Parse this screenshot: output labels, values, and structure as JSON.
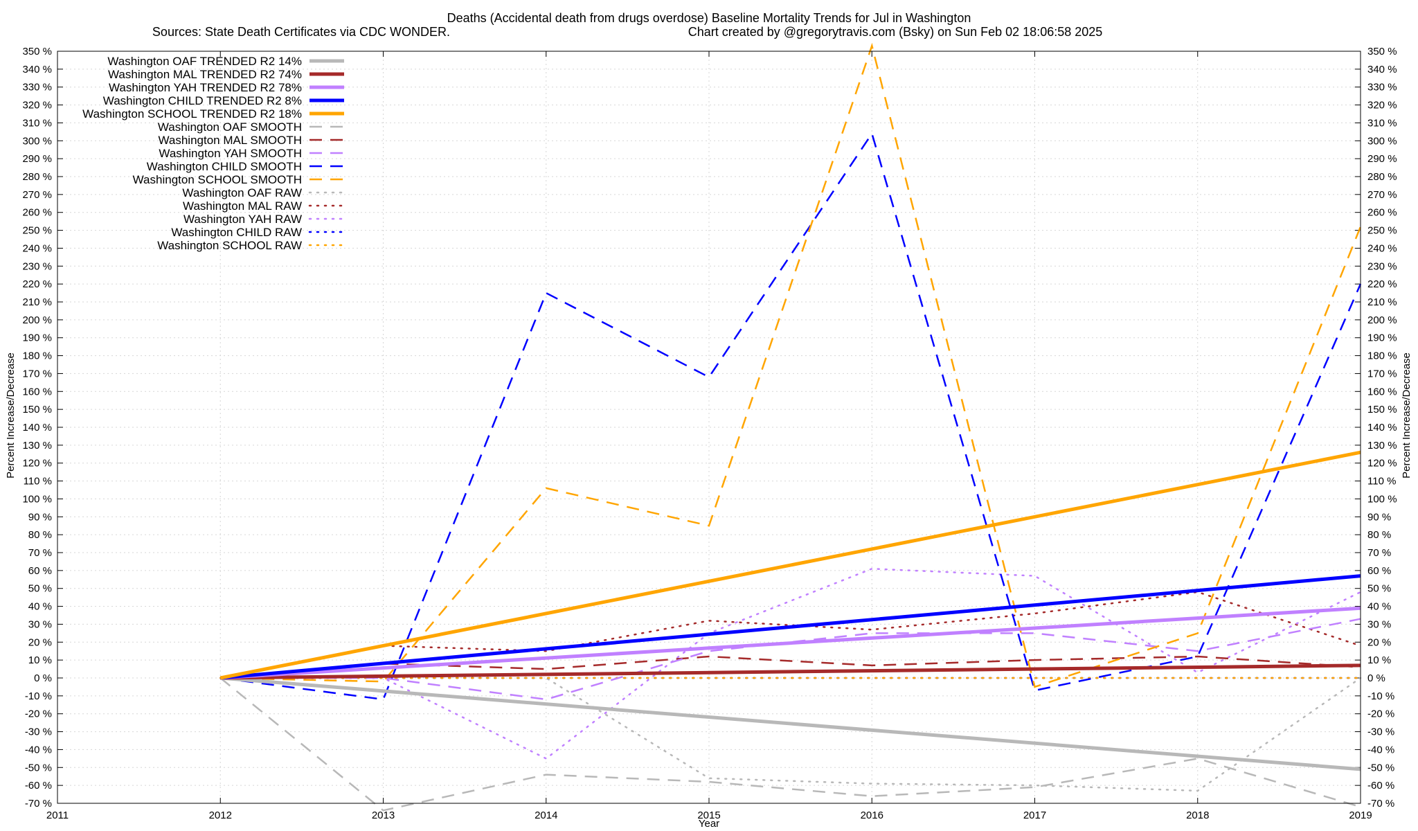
{
  "chart_data": {
    "type": "line",
    "title": "Deaths (Accidental death from drugs overdose)  Baseline Mortality Trends for Jul in Washington",
    "subtitle_left": "Sources: State Death Certificates via CDC WONDER.",
    "subtitle_right": "Chart created by @gregorytravis.com (Bsky) on Sun Feb 02 18:06:58 2025",
    "xlabel": "Year",
    "ylabel_left": "Percent Increase/Decrease",
    "ylabel_right": "Percent Increase/Decrease",
    "xlim": [
      2011,
      2019
    ],
    "ylim": [
      -70,
      350
    ],
    "x_ticks": [
      2011,
      2012,
      2013,
      2014,
      2015,
      2016,
      2017,
      2018,
      2019
    ],
    "x_tick_labels": [
      "2011",
      "2012",
      "2013",
      "2014",
      "2015",
      "2016",
      "2017",
      "2018",
      "2019"
    ],
    "y_step": 10,
    "y_tick_suffix": " %",
    "grid": true,
    "legend_position": "top-left",
    "colors": {
      "oaf": "#b8b8b8",
      "mal": "#a52a2a",
      "yah": "#c080ff",
      "child": "#0000ff",
      "school": "#ffa500"
    },
    "series": [
      {
        "name": "Washington OAF TRENDED R2  14%",
        "group": "oaf",
        "style": "solid",
        "x": [
          2012,
          2019
        ],
        "y": [
          0,
          -51
        ]
      },
      {
        "name": "Washington MAL TRENDED R2  74%",
        "group": "mal",
        "style": "solid",
        "x": [
          2012,
          2019
        ],
        "y": [
          0,
          7
        ]
      },
      {
        "name": "Washington YAH TRENDED R2  78%",
        "group": "yah",
        "style": "solid",
        "x": [
          2012,
          2019
        ],
        "y": [
          0,
          39
        ]
      },
      {
        "name": "Washington CHILD TRENDED R2  8%",
        "group": "child",
        "style": "solid",
        "x": [
          2012,
          2019
        ],
        "y": [
          0,
          57
        ]
      },
      {
        "name": "Washington SCHOOL TRENDED R2  18%",
        "group": "school",
        "style": "solid",
        "x": [
          2012,
          2019
        ],
        "y": [
          0,
          126
        ]
      },
      {
        "name": "Washington OAF SMOOTH",
        "group": "oaf",
        "style": "dashed",
        "x": [
          2012,
          2013,
          2014,
          2015,
          2016,
          2017,
          2018,
          2019
        ],
        "y": [
          0,
          -74,
          -54,
          -58,
          -66,
          -61,
          -45,
          -72
        ]
      },
      {
        "name": "Washington MAL SMOOTH",
        "group": "mal",
        "style": "dashed",
        "x": [
          2012,
          2013,
          2014,
          2015,
          2016,
          2017,
          2018,
          2019
        ],
        "y": [
          0,
          8,
          5,
          12,
          7,
          10,
          12,
          6
        ]
      },
      {
        "name": "Washington YAH SMOOTH",
        "group": "yah",
        "style": "dashed",
        "x": [
          2012,
          2013,
          2014,
          2015,
          2016,
          2017,
          2018,
          2019
        ],
        "y": [
          0,
          0,
          -12,
          15,
          25,
          25,
          15,
          33
        ]
      },
      {
        "name": "Washington CHILD SMOOTH",
        "group": "child",
        "style": "dashed",
        "x": [
          2012,
          2013,
          2014,
          2015,
          2016,
          2017,
          2018,
          2019
        ],
        "y": [
          0,
          -12,
          215,
          168,
          304,
          -7,
          12,
          220
        ]
      },
      {
        "name": "Washington SCHOOL SMOOTH",
        "group": "school",
        "style": "dashed",
        "x": [
          2012,
          2013,
          2014,
          2015,
          2016,
          2017,
          2018,
          2019
        ],
        "y": [
          0,
          -2,
          106,
          85,
          353,
          -5,
          25,
          252
        ]
      },
      {
        "name": "Washington OAF RAW",
        "group": "oaf",
        "style": "dotted",
        "x": [
          2012,
          2013,
          2014,
          2015,
          2016,
          2017,
          2018,
          2019
        ],
        "y": [
          0,
          0,
          0,
          -56,
          -59,
          -60,
          -63,
          0
        ]
      },
      {
        "name": "Washington MAL RAW",
        "group": "mal",
        "style": "dotted",
        "x": [
          2012,
          2013,
          2014,
          2015,
          2016,
          2017,
          2018,
          2019
        ],
        "y": [
          0,
          18,
          15,
          32,
          27,
          36,
          48,
          18
        ]
      },
      {
        "name": "Washington YAH RAW",
        "group": "yah",
        "style": "dotted",
        "x": [
          2012,
          2013,
          2014,
          2015,
          2016,
          2017,
          2018,
          2019
        ],
        "y": [
          0,
          0,
          -45,
          25,
          61,
          57,
          3,
          48
        ]
      },
      {
        "name": "Washington CHILD RAW",
        "group": "child",
        "style": "dotted",
        "x": [
          2012,
          2013,
          2014,
          2015,
          2016,
          2017,
          2018,
          2019
        ],
        "y": [
          0,
          0,
          0,
          0,
          0,
          0,
          0,
          0
        ]
      },
      {
        "name": "Washington SCHOOL RAW",
        "group": "school",
        "style": "dotted",
        "x": [
          2012,
          2013,
          2014,
          2015,
          2016,
          2017,
          2018,
          2019
        ],
        "y": [
          0,
          0,
          0,
          0,
          0,
          0,
          0,
          0
        ]
      }
    ]
  }
}
